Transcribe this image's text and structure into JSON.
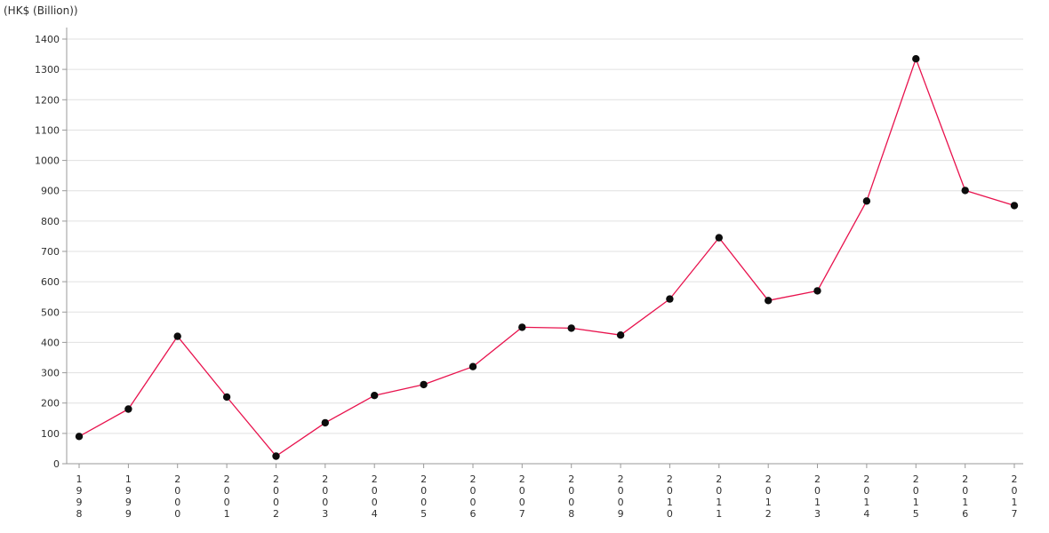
{
  "page": {
    "background": "#ffffff"
  },
  "chart_data": {
    "type": "line",
    "title": "",
    "ylabel": "(HK$ (Billion))",
    "xlabel": "",
    "categories": [
      "1998",
      "1999",
      "2000",
      "2001",
      "2002",
      "2003",
      "2004",
      "2005",
      "2006",
      "2007",
      "2008",
      "2009",
      "2010",
      "2011",
      "2012",
      "2013",
      "2014",
      "2015",
      "2016",
      "2017"
    ],
    "values": [
      90,
      180,
      420,
      220,
      25,
      135,
      225,
      261,
      320,
      450,
      447,
      424,
      543,
      745,
      538,
      570,
      866,
      1335,
      901,
      851
    ],
    "ylim": [
      0,
      1400
    ],
    "ytick_interval": 100,
    "yticks": [
      0,
      100,
      200,
      300,
      400,
      500,
      600,
      700,
      800,
      900,
      1000,
      1100,
      1200,
      1300,
      1400
    ],
    "grid": true,
    "legend": "none",
    "xtick_label_orientation": "vertical-stacked",
    "line_color": "#e8124d",
    "marker_color": "#0d0d0d",
    "axis_color": "#999999",
    "gridline_color": "#e0e0e0",
    "label_color": "#2e2e2e"
  }
}
